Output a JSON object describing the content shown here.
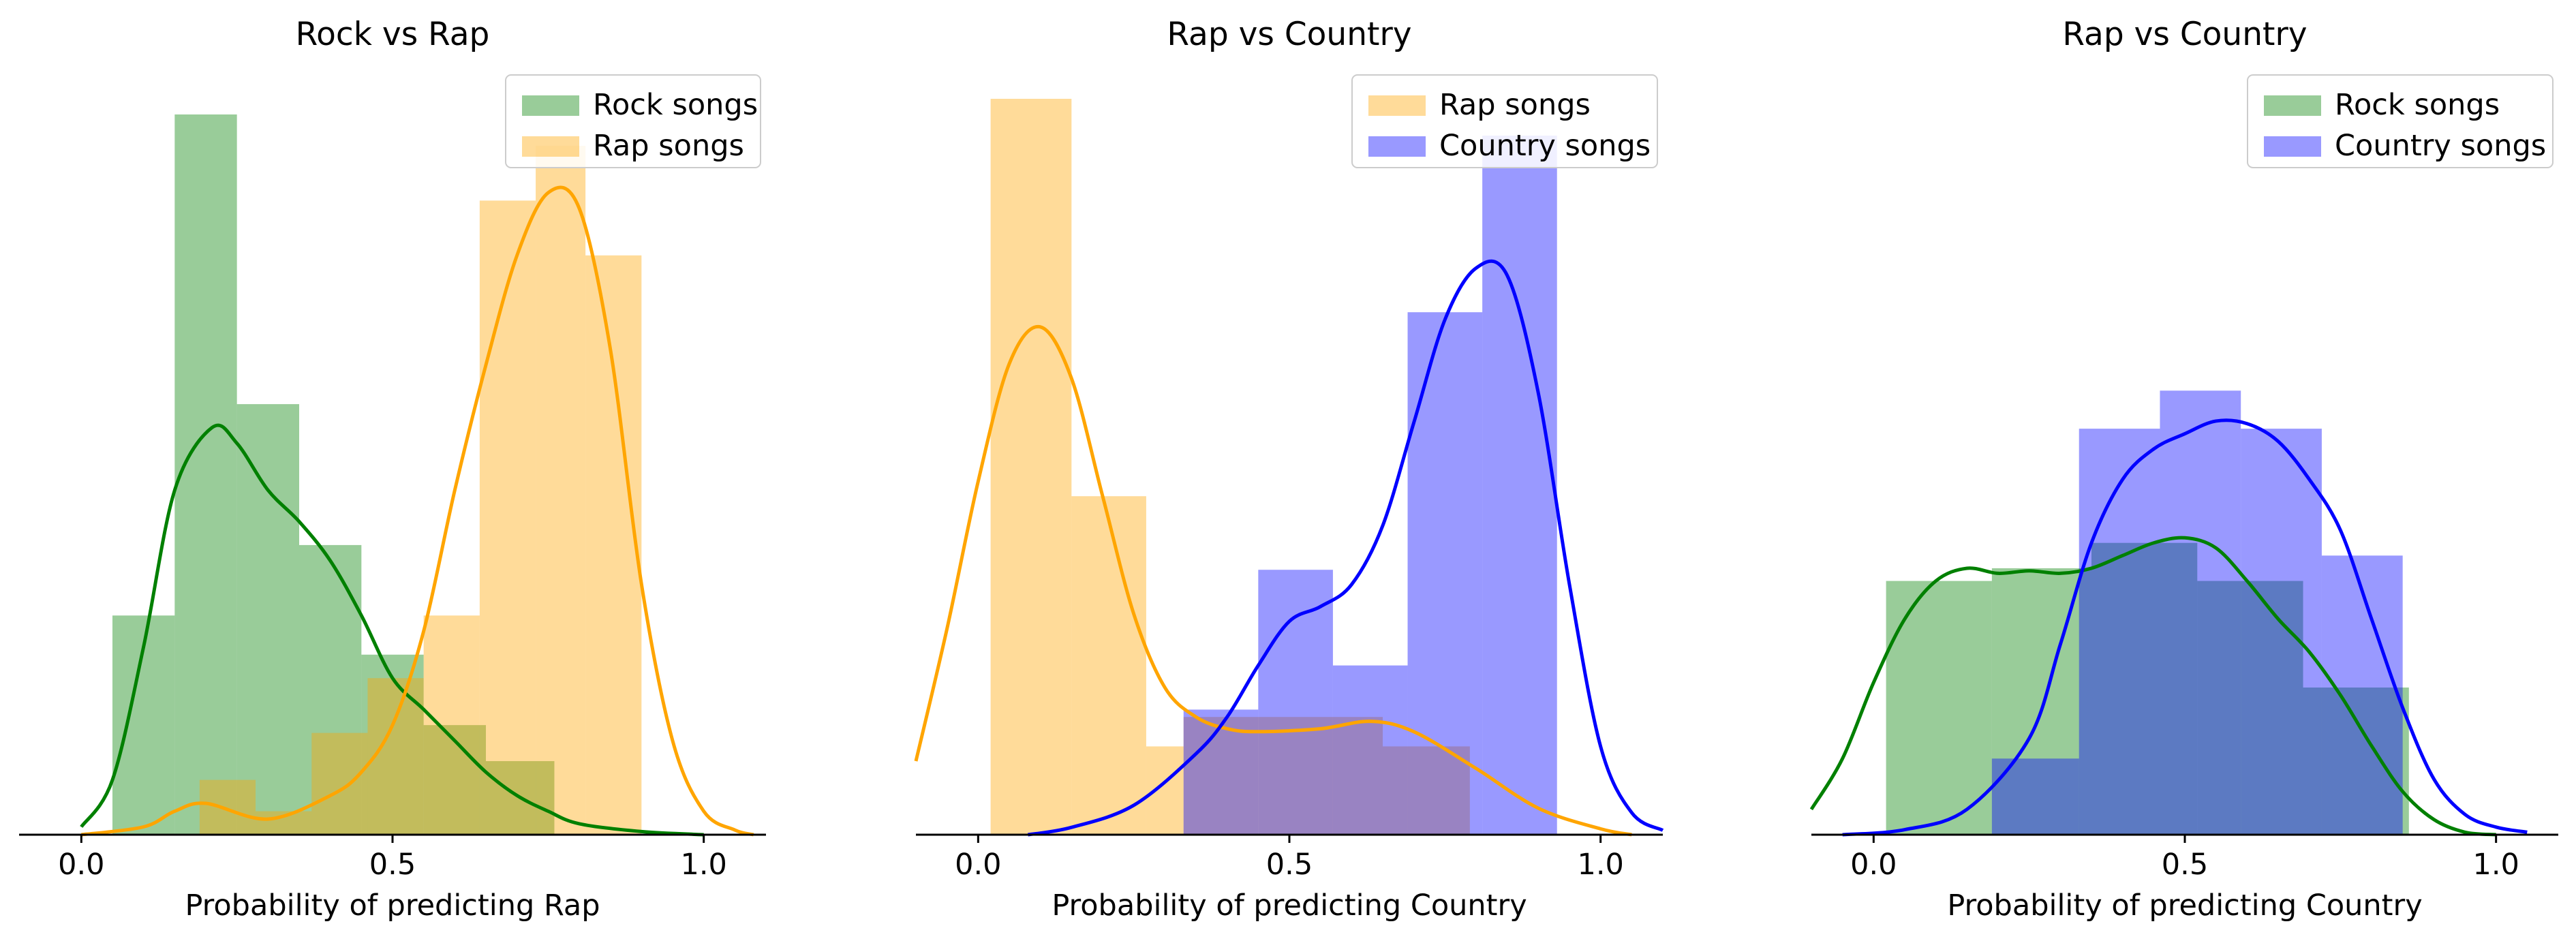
{
  "colors": {
    "green": "#008000",
    "orange": "#FFA500",
    "blue": "#0000FF",
    "axis": "#000000"
  },
  "chart_data": [
    {
      "type": "histogram_kde",
      "title": "Rock vs Rap",
      "xlabel": "Probability of predicting Rap",
      "xlim": [
        -0.1,
        1.1
      ],
      "ylim": [
        0,
        4.7
      ],
      "xticks": [
        "0.0",
        "0.5",
        "1.0"
      ],
      "legend_position": "top-right",
      "series": [
        {
          "name": "Rock songs",
          "color": "#008000",
          "bins": [
            [
              0.05,
              0.15,
              1.4
            ],
            [
              0.15,
              0.25,
              4.6
            ],
            [
              0.25,
              0.35,
              2.75
            ],
            [
              0.35,
              0.45,
              1.85
            ],
            [
              0.45,
              0.55,
              1.15
            ],
            [
              0.55,
              0.65,
              0.7
            ],
            [
              0.65,
              0.76,
              0.47
            ]
          ],
          "kde": [
            [
              0.0,
              0.05
            ],
            [
              0.05,
              0.35
            ],
            [
              0.1,
              1.2
            ],
            [
              0.15,
              2.2
            ],
            [
              0.21,
              2.6
            ],
            [
              0.25,
              2.5
            ],
            [
              0.3,
              2.2
            ],
            [
              0.35,
              2.0
            ],
            [
              0.4,
              1.75
            ],
            [
              0.45,
              1.4
            ],
            [
              0.5,
              1.0
            ],
            [
              0.55,
              0.8
            ],
            [
              0.6,
              0.6
            ],
            [
              0.65,
              0.4
            ],
            [
              0.7,
              0.25
            ],
            [
              0.75,
              0.15
            ],
            [
              0.8,
              0.07
            ],
            [
              0.9,
              0.02
            ],
            [
              1.0,
              0.0
            ]
          ]
        },
        {
          "name": "Rap songs",
          "color": "#FFA500",
          "bins": [
            [
              0.19,
              0.28,
              0.35
            ],
            [
              0.28,
              0.37,
              0.15
            ],
            [
              0.37,
              0.46,
              0.65
            ],
            [
              0.46,
              0.55,
              1.0
            ],
            [
              0.55,
              0.64,
              1.4
            ],
            [
              0.64,
              0.73,
              4.05
            ],
            [
              0.73,
              0.81,
              4.4
            ],
            [
              0.81,
              0.9,
              3.7
            ]
          ],
          "kde": [
            [
              0.0,
              0.0
            ],
            [
              0.1,
              0.05
            ],
            [
              0.15,
              0.15
            ],
            [
              0.2,
              0.2
            ],
            [
              0.3,
              0.1
            ],
            [
              0.4,
              0.25
            ],
            [
              0.45,
              0.4
            ],
            [
              0.5,
              0.7
            ],
            [
              0.55,
              1.3
            ],
            [
              0.6,
              2.2
            ],
            [
              0.65,
              3.0
            ],
            [
              0.7,
              3.7
            ],
            [
              0.75,
              4.1
            ],
            [
              0.8,
              4.0
            ],
            [
              0.85,
              3.1
            ],
            [
              0.9,
              1.6
            ],
            [
              0.95,
              0.6
            ],
            [
              1.0,
              0.15
            ],
            [
              1.05,
              0.03
            ],
            [
              1.08,
              0.0
            ]
          ]
        }
      ]
    },
    {
      "type": "histogram_kde",
      "title": "Rap vs Country",
      "xlabel": "Probability of predicting Country",
      "xlim": [
        -0.1,
        1.1
      ],
      "ylim": [
        0,
        5.0
      ],
      "xticks": [
        "0.0",
        "0.5",
        "1.0"
      ],
      "legend_position": "top-right",
      "series": [
        {
          "name": "Rap songs",
          "color": "#FFA500",
          "bins": [
            [
              0.02,
              0.15,
              5.0
            ],
            [
              0.15,
              0.27,
              2.3
            ],
            [
              0.27,
              0.33,
              0.6
            ],
            [
              0.33,
              0.45,
              0.8
            ],
            [
              0.45,
              0.65,
              0.8
            ],
            [
              0.65,
              0.79,
              0.6
            ]
          ],
          "kde": [
            [
              -0.1,
              0.5
            ],
            [
              -0.05,
              1.4
            ],
            [
              0.0,
              2.4
            ],
            [
              0.05,
              3.2
            ],
            [
              0.1,
              3.45
            ],
            [
              0.15,
              3.1
            ],
            [
              0.2,
              2.3
            ],
            [
              0.25,
              1.5
            ],
            [
              0.3,
              1.0
            ],
            [
              0.35,
              0.8
            ],
            [
              0.4,
              0.72
            ],
            [
              0.45,
              0.7
            ],
            [
              0.55,
              0.72
            ],
            [
              0.63,
              0.77
            ],
            [
              0.7,
              0.7
            ],
            [
              0.8,
              0.45
            ],
            [
              0.9,
              0.18
            ],
            [
              1.0,
              0.04
            ],
            [
              1.05,
              0.0
            ]
          ]
        },
        {
          "name": "Country songs",
          "color": "#0000FF",
          "bins": [
            [
              0.33,
              0.45,
              0.85
            ],
            [
              0.45,
              0.57,
              1.8
            ],
            [
              0.57,
              0.69,
              1.15
            ],
            [
              0.69,
              0.81,
              3.55
            ],
            [
              0.81,
              0.93,
              4.75
            ]
          ],
          "kde": [
            [
              0.08,
              0.0
            ],
            [
              0.15,
              0.05
            ],
            [
              0.25,
              0.2
            ],
            [
              0.35,
              0.55
            ],
            [
              0.4,
              0.8
            ],
            [
              0.45,
              1.15
            ],
            [
              0.5,
              1.45
            ],
            [
              0.55,
              1.55
            ],
            [
              0.6,
              1.7
            ],
            [
              0.65,
              2.1
            ],
            [
              0.7,
              2.8
            ],
            [
              0.75,
              3.5
            ],
            [
              0.8,
              3.85
            ],
            [
              0.85,
              3.8
            ],
            [
              0.9,
              3.0
            ],
            [
              0.95,
              1.7
            ],
            [
              1.0,
              0.6
            ],
            [
              1.05,
              0.15
            ],
            [
              1.1,
              0.03
            ]
          ]
        }
      ]
    },
    {
      "type": "histogram_kde",
      "title": "Rap vs Country",
      "xlabel": "Probability of predicting Country",
      "xlim": [
        -0.1,
        1.1
      ],
      "ylim": [
        0,
        2.9
      ],
      "xticks": [
        "0.0",
        "0.5",
        "1.0"
      ],
      "legend_position": "top-right",
      "series": [
        {
          "name": "Rock songs",
          "color": "#008000",
          "bins": [
            [
              0.02,
              0.19,
              1.0
            ],
            [
              0.19,
              0.35,
              1.05
            ],
            [
              0.35,
              0.52,
              1.15
            ],
            [
              0.52,
              0.69,
              1.0
            ],
            [
              0.69,
              0.86,
              0.58
            ]
          ],
          "kde": [
            [
              -0.1,
              0.1
            ],
            [
              -0.05,
              0.3
            ],
            [
              0.0,
              0.6
            ],
            [
              0.05,
              0.85
            ],
            [
              0.1,
              1.0
            ],
            [
              0.15,
              1.05
            ],
            [
              0.2,
              1.03
            ],
            [
              0.25,
              1.04
            ],
            [
              0.3,
              1.03
            ],
            [
              0.35,
              1.05
            ],
            [
              0.4,
              1.1
            ],
            [
              0.45,
              1.15
            ],
            [
              0.5,
              1.17
            ],
            [
              0.55,
              1.13
            ],
            [
              0.6,
              1.0
            ],
            [
              0.65,
              0.85
            ],
            [
              0.7,
              0.72
            ],
            [
              0.75,
              0.55
            ],
            [
              0.8,
              0.35
            ],
            [
              0.85,
              0.17
            ],
            [
              0.9,
              0.06
            ],
            [
              0.95,
              0.01
            ],
            [
              1.0,
              0.0
            ]
          ]
        },
        {
          "name": "Country songs",
          "color": "#0000FF",
          "bins": [
            [
              0.19,
              0.33,
              0.3
            ],
            [
              0.33,
              0.46,
              1.6
            ],
            [
              0.46,
              0.59,
              1.75
            ],
            [
              0.59,
              0.72,
              1.6
            ],
            [
              0.72,
              0.85,
              1.1
            ]
          ],
          "kde": [
            [
              -0.05,
              0.0
            ],
            [
              0.05,
              0.02
            ],
            [
              0.15,
              0.1
            ],
            [
              0.25,
              0.38
            ],
            [
              0.3,
              0.75
            ],
            [
              0.35,
              1.15
            ],
            [
              0.4,
              1.4
            ],
            [
              0.45,
              1.52
            ],
            [
              0.5,
              1.58
            ],
            [
              0.55,
              1.63
            ],
            [
              0.6,
              1.62
            ],
            [
              0.65,
              1.55
            ],
            [
              0.7,
              1.4
            ],
            [
              0.75,
              1.2
            ],
            [
              0.8,
              0.85
            ],
            [
              0.85,
              0.5
            ],
            [
              0.9,
              0.22
            ],
            [
              0.95,
              0.08
            ],
            [
              1.0,
              0.03
            ],
            [
              1.05,
              0.01
            ]
          ]
        }
      ]
    }
  ]
}
